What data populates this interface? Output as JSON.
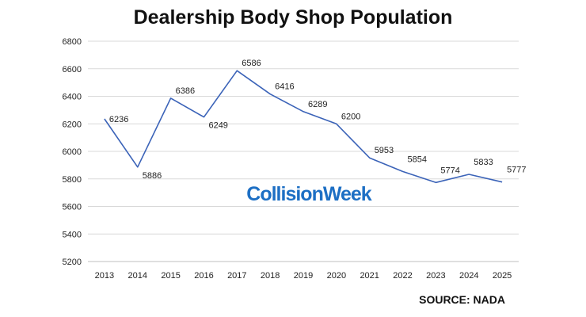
{
  "chart_data": {
    "type": "line",
    "title": "Dealership Body Shop Population",
    "xlabel": "",
    "ylabel": "",
    "x": [
      "2013",
      "2014",
      "2015",
      "2016",
      "2017",
      "2018",
      "2019",
      "2020",
      "2021",
      "2022",
      "2023",
      "2024",
      "2025"
    ],
    "series": [
      {
        "values": [
          6236,
          5886,
          6386,
          6249,
          6586,
          6416,
          6289,
          6200,
          5953,
          5854,
          5774,
          5833,
          5777
        ]
      }
    ],
    "data_labels": [
      "6236",
      "5886",
      "6386",
      "6249",
      "6586",
      "6416",
      "6289",
      "6200",
      "5953",
      "5854",
      "5774",
      "5833",
      "5777"
    ],
    "ylim": [
      5200,
      6800
    ],
    "yticks": [
      5200,
      5400,
      5600,
      5800,
      6000,
      6200,
      6400,
      6600,
      6800
    ],
    "grid": "horizontal",
    "legend": "none",
    "line_color": "#3b63b8"
  },
  "watermark": "CollisionWeek",
  "source_note": "SOURCE: NADA"
}
